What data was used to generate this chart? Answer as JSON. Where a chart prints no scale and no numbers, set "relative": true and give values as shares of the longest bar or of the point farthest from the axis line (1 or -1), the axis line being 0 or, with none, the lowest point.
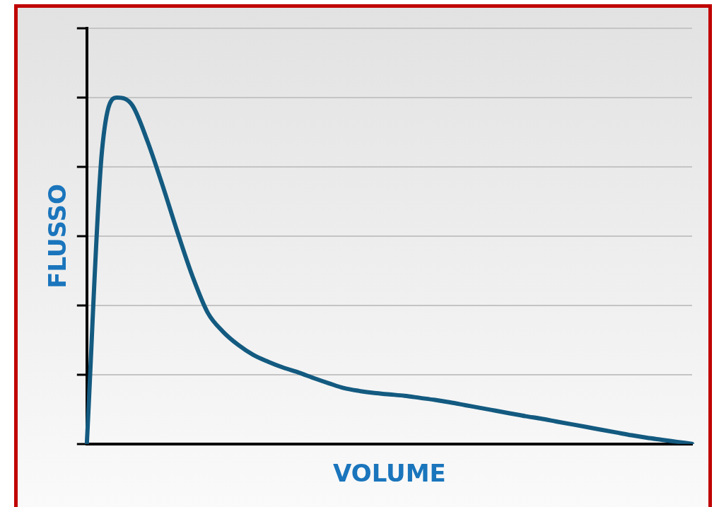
{
  "chart_data": {
    "type": "line",
    "relative": true,
    "xlabel": "VOLUME",
    "ylabel": "FLUSSO",
    "grid": "y",
    "marker": "none",
    "line_style": "solid",
    "legend": false,
    "categories": [
      null,
      null,
      null,
      null,
      null,
      null,
      null,
      null,
      null,
      null,
      null,
      null,
      null,
      null,
      null,
      null,
      null,
      null,
      null,
      null,
      null,
      null,
      null,
      null,
      null,
      null,
      null,
      null,
      null,
      null,
      null,
      null,
      null,
      null,
      null,
      null,
      null,
      null,
      null,
      null,
      null
    ],
    "series": [
      {
        "color": "#135a80",
        "values": [
          0,
          0.845,
          1,
          0.978,
          0.875,
          0.747,
          0.61,
          0.482,
          0.378,
          0.324,
          0.286,
          0.257,
          0.237,
          0.22,
          0.206,
          0.19,
          0.175,
          0.161,
          0.153,
          0.147,
          0.143,
          0.139,
          0.133,
          0.127,
          0.12,
          0.112,
          0.104,
          0.096,
          0.088,
          0.08,
          0.073,
          0.065,
          0.057,
          0.049,
          0.041,
          0.033,
          0.025,
          0.018,
          0.012,
          0.006,
          0
        ]
      }
    ]
  }
}
